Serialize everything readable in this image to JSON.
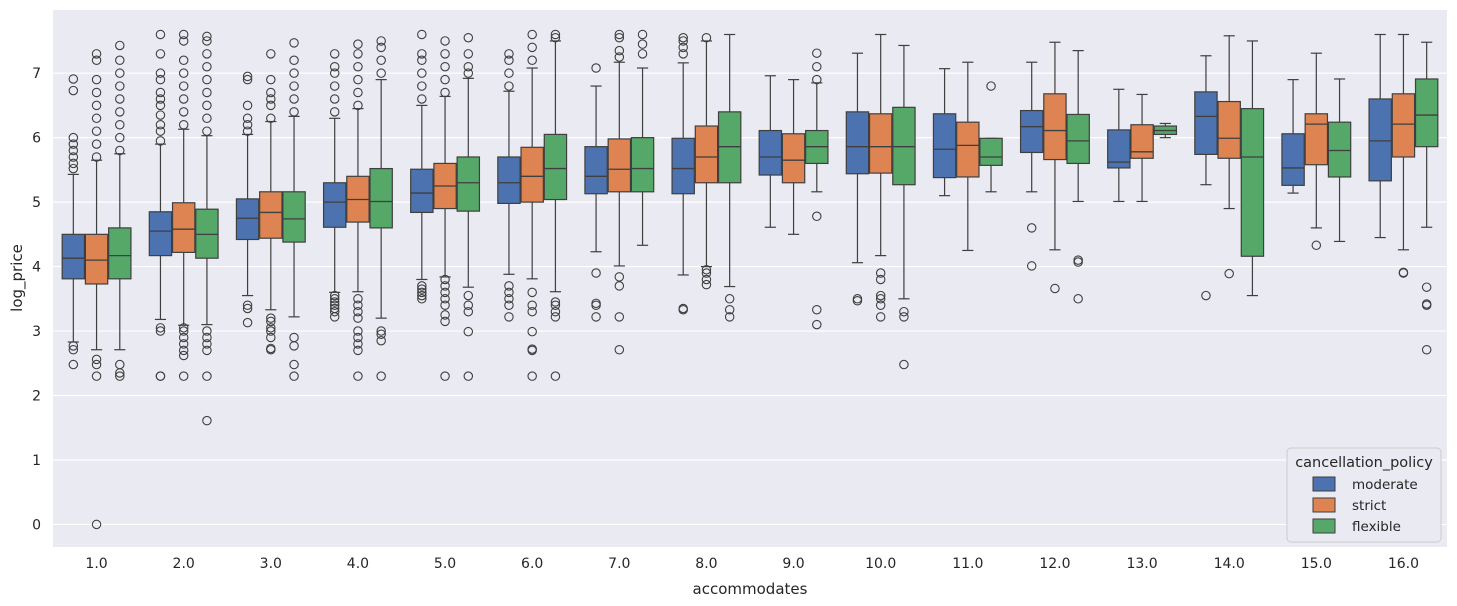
{
  "chart_data": {
    "type": "box",
    "title": "",
    "xlabel": "accommodates",
    "ylabel": "log_price",
    "ylim": [
      -0.35,
      7.98
    ],
    "yticks": [
      0,
      1,
      2,
      3,
      4,
      5,
      6,
      7
    ],
    "grid": true,
    "categories": [
      "1.0",
      "2.0",
      "3.0",
      "4.0",
      "5.0",
      "6.0",
      "7.0",
      "8.0",
      "9.0",
      "10.0",
      "11.0",
      "12.0",
      "13.0",
      "14.0",
      "15.0",
      "16.0"
    ],
    "legend": {
      "title": "cancellation_policy",
      "placement": "lower-right",
      "entries": [
        "moderate",
        "strict",
        "flexible"
      ]
    },
    "series": [
      {
        "name": "moderate",
        "color": "#4c72b0",
        "boxes": [
          {
            "q1": 3.81,
            "med": 4.13,
            "q3": 4.5,
            "lo": 2.83,
            "hi": 5.43,
            "outliers": [
              2.48,
              2.71,
              2.77,
              5.52,
              5.6,
              5.7,
              5.8,
              5.9,
              6.0,
              6.73,
              6.91
            ]
          },
          {
            "q1": 4.17,
            "med": 4.55,
            "q3": 4.85,
            "lo": 3.18,
            "hi": 5.9,
            "outliers": [
              2.3,
              2.3,
              3.0,
              3.05,
              5.95,
              6.1,
              6.2,
              6.35,
              6.5,
              6.6,
              6.7,
              6.9,
              7.0,
              7.3,
              7.6
            ]
          },
          {
            "q1": 4.42,
            "med": 4.75,
            "q3": 5.05,
            "lo": 3.55,
            "hi": 6.05,
            "outliers": [
              3.13,
              3.35,
              3.4,
              6.1,
              6.2,
              6.3,
              6.5,
              6.9,
              6.95
            ]
          },
          {
            "q1": 4.61,
            "med": 5.0,
            "q3": 5.3,
            "lo": 3.6,
            "hi": 6.3,
            "outliers": [
              3.22,
              3.3,
              3.35,
              3.4,
              3.45,
              3.5,
              3.55,
              6.4,
              6.6,
              6.8,
              7.0,
              7.1,
              7.3
            ]
          },
          {
            "q1": 4.84,
            "med": 5.14,
            "q3": 5.51,
            "lo": 3.8,
            "hi": 6.5,
            "outliers": [
              3.5,
              3.55,
              3.6,
              3.65,
              3.7,
              6.6,
              6.8,
              7.0,
              7.2,
              7.3,
              7.6
            ]
          },
          {
            "q1": 4.98,
            "med": 5.3,
            "q3": 5.7,
            "lo": 3.88,
            "hi": 6.72,
            "outliers": [
              3.22,
              3.4,
              3.5,
              3.6,
              3.7,
              6.8,
              7.0,
              7.2,
              7.3
            ]
          },
          {
            "q1": 5.13,
            "med": 5.4,
            "q3": 5.86,
            "lo": 4.23,
            "hi": 6.8,
            "outliers": [
              3.22,
              3.4,
              3.43,
              3.9,
              7.08
            ]
          },
          {
            "q1": 5.13,
            "med": 5.52,
            "q3": 5.99,
            "lo": 3.87,
            "hi": 7.16,
            "outliers": [
              3.33,
              3.35,
              7.3,
              7.4,
              7.5,
              7.55
            ]
          },
          {
            "q1": 5.42,
            "med": 5.7,
            "q3": 6.11,
            "lo": 4.61,
            "hi": 6.96,
            "outliers": []
          },
          {
            "q1": 5.44,
            "med": 5.86,
            "q3": 6.4,
            "lo": 4.06,
            "hi": 7.31,
            "outliers": [
              3.47,
              3.5
            ]
          },
          {
            "q1": 5.38,
            "med": 5.82,
            "q3": 6.37,
            "lo": 5.1,
            "hi": 7.07,
            "outliers": []
          },
          {
            "q1": 5.77,
            "med": 6.17,
            "q3": 6.42,
            "lo": 5.16,
            "hi": 7.17,
            "outliers": [
              4.01,
              4.6
            ]
          },
          {
            "q1": 5.53,
            "med": 5.62,
            "q3": 6.12,
            "lo": 5.01,
            "hi": 6.75,
            "outliers": []
          },
          {
            "q1": 5.74,
            "med": 6.33,
            "q3": 6.71,
            "lo": 5.27,
            "hi": 7.27,
            "outliers": [
              3.55
            ]
          },
          {
            "q1": 5.26,
            "med": 5.53,
            "q3": 6.06,
            "lo": 5.14,
            "hi": 6.9,
            "outliers": []
          },
          {
            "q1": 5.33,
            "med": 5.95,
            "q3": 6.6,
            "lo": 4.45,
            "hi": 7.6,
            "outliers": []
          }
        ]
      },
      {
        "name": "strict",
        "color": "#dd8452",
        "boxes": [
          {
            "q1": 3.73,
            "med": 4.1,
            "q3": 4.5,
            "lo": 2.71,
            "hi": 5.65,
            "outliers": [
              0.0,
              2.3,
              2.48,
              2.56,
              5.7,
              5.9,
              6.1,
              6.3,
              6.5,
              6.7,
              6.9,
              7.2,
              7.3
            ]
          },
          {
            "q1": 4.22,
            "med": 4.58,
            "q3": 4.99,
            "lo": 3.09,
            "hi": 6.13,
            "outliers": [
              2.3,
              2.62,
              2.7,
              2.8,
              2.9,
              3.0,
              3.05,
              6.2,
              6.4,
              6.6,
              6.8,
              7.0,
              7.2,
              7.5,
              7.6
            ]
          },
          {
            "q1": 4.44,
            "med": 4.84,
            "q3": 5.16,
            "lo": 3.33,
            "hi": 6.25,
            "outliers": [
              2.71,
              2.73,
              2.9,
              3.0,
              3.05,
              3.15,
              3.2,
              6.3,
              6.5,
              6.6,
              6.7,
              6.9,
              7.3
            ]
          },
          {
            "q1": 4.69,
            "med": 5.04,
            "q3": 5.4,
            "lo": 3.61,
            "hi": 6.45,
            "outliers": [
              2.3,
              2.7,
              2.8,
              2.9,
              3.0,
              3.2,
              3.3,
              3.4,
              3.5,
              6.5,
              6.7,
              6.9,
              7.1,
              7.3,
              7.45
            ]
          },
          {
            "q1": 4.9,
            "med": 5.25,
            "q3": 5.6,
            "lo": 3.84,
            "hi": 6.64,
            "outliers": [
              2.3,
              3.15,
              3.25,
              3.4,
              3.5,
              3.6,
              3.7,
              3.8,
              6.7,
              6.9,
              7.1,
              7.3,
              7.5
            ]
          },
          {
            "q1": 5.0,
            "med": 5.4,
            "q3": 5.85,
            "lo": 3.81,
            "hi": 7.08,
            "outliers": [
              2.3,
              2.7,
              2.72,
              2.99,
              3.3,
              3.4,
              3.6,
              7.2,
              7.4,
              7.6
            ]
          },
          {
            "q1": 5.16,
            "med": 5.51,
            "q3": 5.98,
            "lo": 4.01,
            "hi": 7.17,
            "outliers": [
              2.71,
              3.22,
              3.7,
              3.84,
              7.25,
              7.35,
              7.55,
              7.6
            ]
          },
          {
            "q1": 5.3,
            "med": 5.7,
            "q3": 6.18,
            "lo": 4.0,
            "hi": 7.5,
            "outliers": [
              3.72,
              3.8,
              3.9,
              3.95,
              7.55
            ]
          },
          {
            "q1": 5.3,
            "med": 5.65,
            "q3": 6.06,
            "lo": 4.5,
            "hi": 6.9,
            "outliers": []
          },
          {
            "q1": 5.45,
            "med": 5.86,
            "q3": 6.37,
            "lo": 4.17,
            "hi": 7.6,
            "outliers": [
              3.22,
              3.4,
              3.5,
              3.55,
              3.8,
              3.9
            ]
          },
          {
            "q1": 5.39,
            "med": 5.88,
            "q3": 6.24,
            "lo": 4.25,
            "hi": 7.17,
            "outliers": []
          },
          {
            "q1": 5.66,
            "med": 6.11,
            "q3": 6.68,
            "lo": 4.26,
            "hi": 7.48,
            "outliers": [
              3.66
            ]
          },
          {
            "q1": 5.68,
            "med": 5.78,
            "q3": 6.2,
            "lo": 5.01,
            "hi": 6.67,
            "outliers": []
          },
          {
            "q1": 5.68,
            "med": 5.99,
            "q3": 6.56,
            "lo": 4.9,
            "hi": 7.58,
            "outliers": [
              3.89
            ]
          },
          {
            "q1": 5.58,
            "med": 6.21,
            "q3": 6.37,
            "lo": 4.6,
            "hi": 7.31,
            "outliers": [
              4.33
            ]
          },
          {
            "q1": 5.7,
            "med": 6.21,
            "q3": 6.68,
            "lo": 4.26,
            "hi": 7.6,
            "outliers": [
              3.9,
              3.91
            ]
          }
        ]
      },
      {
        "name": "flexible",
        "color": "#55a868",
        "boxes": [
          {
            "q1": 3.81,
            "med": 4.17,
            "q3": 4.6,
            "lo": 2.71,
            "hi": 5.75,
            "outliers": [
              2.3,
              2.35,
              2.48,
              5.8,
              6.0,
              6.2,
              6.4,
              6.6,
              6.8,
              7.0,
              7.2,
              7.43
            ]
          },
          {
            "q1": 4.13,
            "med": 4.5,
            "q3": 4.89,
            "lo": 3.1,
            "hi": 6.03,
            "outliers": [
              1.61,
              2.3,
              2.7,
              2.8,
              2.9,
              3.0,
              6.1,
              6.3,
              6.5,
              6.7,
              6.9,
              7.1,
              7.3,
              7.5,
              7.57
            ]
          },
          {
            "q1": 4.38,
            "med": 4.74,
            "q3": 5.16,
            "lo": 3.22,
            "hi": 6.33,
            "outliers": [
              2.3,
              2.48,
              2.77,
              2.9,
              6.4,
              6.6,
              6.8,
              7.0,
              7.2,
              7.47
            ]
          },
          {
            "q1": 4.6,
            "med": 5.01,
            "q3": 5.52,
            "lo": 3.2,
            "hi": 6.9,
            "outliers": [
              2.3,
              2.85,
              2.95,
              3.0,
              7.0,
              7.2,
              7.4,
              7.5
            ]
          },
          {
            "q1": 4.86,
            "med": 5.3,
            "q3": 5.7,
            "lo": 3.68,
            "hi": 6.92,
            "outliers": [
              2.3,
              2.99,
              3.3,
              3.4,
              3.55,
              7.0,
              7.1,
              7.3,
              7.55
            ]
          },
          {
            "q1": 5.04,
            "med": 5.52,
            "q3": 6.05,
            "lo": 3.61,
            "hi": 7.5,
            "outliers": [
              2.3,
              3.22,
              3.3,
              3.4,
              3.45,
              7.55,
              7.6
            ]
          },
          {
            "q1": 5.16,
            "med": 5.52,
            "q3": 6.0,
            "lo": 4.33,
            "hi": 7.08,
            "outliers": [
              7.3,
              7.45,
              7.6
            ]
          },
          {
            "q1": 5.3,
            "med": 5.86,
            "q3": 6.4,
            "lo": 3.69,
            "hi": 7.6,
            "outliers": [
              3.22,
              3.33,
              3.5
            ]
          },
          {
            "q1": 5.6,
            "med": 5.86,
            "q3": 6.11,
            "lo": 5.16,
            "hi": 6.85,
            "outliers": [
              3.1,
              3.33,
              4.78,
              6.9,
              7.1,
              7.31
            ]
          },
          {
            "q1": 5.27,
            "med": 5.86,
            "q3": 6.47,
            "lo": 3.5,
            "hi": 7.43,
            "outliers": [
              2.48,
              3.22,
              3.3
            ]
          },
          {
            "q1": 5.57,
            "med": 5.7,
            "q3": 5.99,
            "lo": 5.16,
            "hi": 5.99,
            "outliers": [
              6.8
            ]
          },
          {
            "q1": 5.6,
            "med": 5.95,
            "q3": 6.36,
            "lo": 5.01,
            "hi": 7.35,
            "outliers": [
              3.5,
              4.07,
              4.1
            ]
          },
          {
            "q1": 6.05,
            "med": 6.11,
            "q3": 6.18,
            "lo": 6.0,
            "hi": 6.22,
            "outliers": []
          },
          {
            "q1": 4.16,
            "med": 5.7,
            "q3": 6.45,
            "lo": 3.55,
            "hi": 7.5,
            "outliers": []
          },
          {
            "q1": 5.39,
            "med": 5.8,
            "q3": 6.24,
            "lo": 4.39,
            "hi": 6.91,
            "outliers": []
          },
          {
            "q1": 5.86,
            "med": 6.35,
            "q3": 6.91,
            "lo": 4.61,
            "hi": 7.48,
            "outliers": [
              2.71,
              3.4,
              3.42,
              3.68
            ]
          }
        ]
      }
    ]
  }
}
